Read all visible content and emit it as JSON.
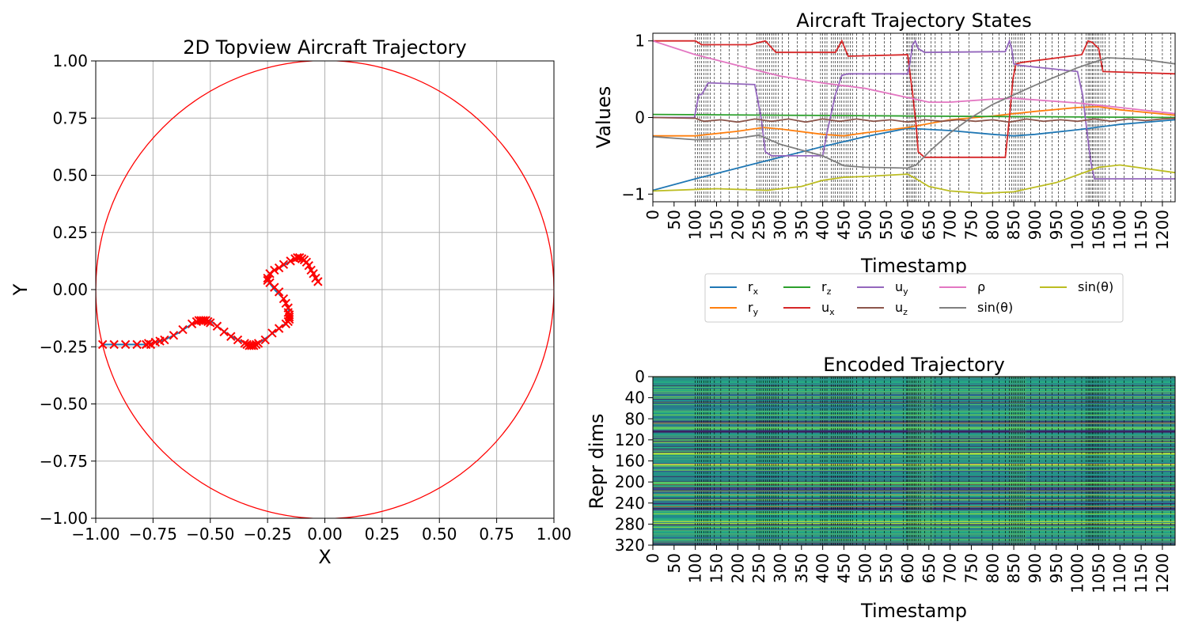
{
  "chart_data": [
    {
      "type": "scatter",
      "title": "2D Topview Aircraft Trajectory",
      "xlabel": "X",
      "ylabel": "Y",
      "xlim": [
        -1.0,
        1.0
      ],
      "ylim": [
        -1.0,
        1.0
      ],
      "grid": true,
      "xticks": [
        "−1.00",
        "−0.75",
        "−0.50",
        "−0.25",
        "0.00",
        "0.25",
        "0.50",
        "0.75",
        "1.00"
      ],
      "yticks": [
        "−1.00",
        "−0.75",
        "−0.50",
        "−0.25",
        "0.00",
        "0.25",
        "0.50",
        "0.75",
        "1.00"
      ],
      "colors": {
        "path": "#1f77b4",
        "markers": "#ff0000",
        "boundary": "#ff0000",
        "grid": "#b0b0b0"
      },
      "boundary_circle": {
        "center": [
          0,
          0
        ],
        "radius": 1.0
      },
      "path": [
        [
          -0.97,
          -0.24
        ],
        [
          -0.88,
          -0.24
        ],
        [
          -0.78,
          -0.24
        ],
        [
          -0.74,
          -0.23
        ],
        [
          -0.7,
          -0.22
        ],
        [
          -0.64,
          -0.19
        ],
        [
          -0.58,
          -0.15
        ],
        [
          -0.54,
          -0.135
        ],
        [
          -0.5,
          -0.135
        ],
        [
          -0.47,
          -0.16
        ],
        [
          -0.43,
          -0.19
        ],
        [
          -0.38,
          -0.22
        ],
        [
          -0.33,
          -0.24
        ],
        [
          -0.29,
          -0.235
        ],
        [
          -0.24,
          -0.2
        ],
        [
          -0.2,
          -0.17
        ],
        [
          -0.16,
          -0.14
        ],
        [
          -0.155,
          -0.11
        ],
        [
          -0.16,
          -0.08
        ],
        [
          -0.18,
          -0.04
        ],
        [
          -0.22,
          0.0
        ],
        [
          -0.25,
          0.04
        ],
        [
          -0.23,
          0.08
        ],
        [
          -0.19,
          0.1
        ],
        [
          -0.14,
          0.13
        ],
        [
          -0.1,
          0.135
        ],
        [
          -0.07,
          0.11
        ],
        [
          -0.05,
          0.07
        ],
        [
          -0.03,
          0.04
        ]
      ],
      "markers": [
        [
          -0.97,
          -0.24
        ],
        [
          -0.92,
          -0.24
        ],
        [
          -0.87,
          -0.24
        ],
        [
          -0.82,
          -0.24
        ],
        [
          -0.78,
          -0.24
        ],
        [
          -0.77,
          -0.235
        ],
        [
          -0.76,
          -0.24
        ],
        [
          -0.74,
          -0.23
        ],
        [
          -0.72,
          -0.225
        ],
        [
          -0.7,
          -0.22
        ],
        [
          -0.66,
          -0.2
        ],
        [
          -0.62,
          -0.175
        ],
        [
          -0.58,
          -0.15
        ],
        [
          -0.56,
          -0.14
        ],
        [
          -0.55,
          -0.135
        ],
        [
          -0.54,
          -0.135
        ],
        [
          -0.53,
          -0.135
        ],
        [
          -0.52,
          -0.135
        ],
        [
          -0.51,
          -0.14
        ],
        [
          -0.5,
          -0.145
        ],
        [
          -0.47,
          -0.16
        ],
        [
          -0.44,
          -0.185
        ],
        [
          -0.41,
          -0.205
        ],
        [
          -0.38,
          -0.22
        ],
        [
          -0.35,
          -0.235
        ],
        [
          -0.34,
          -0.24
        ],
        [
          -0.33,
          -0.245
        ],
        [
          -0.32,
          -0.245
        ],
        [
          -0.31,
          -0.245
        ],
        [
          -0.3,
          -0.24
        ],
        [
          -0.29,
          -0.235
        ],
        [
          -0.26,
          -0.22
        ],
        [
          -0.23,
          -0.19
        ],
        [
          -0.2,
          -0.17
        ],
        [
          -0.17,
          -0.15
        ],
        [
          -0.16,
          -0.14
        ],
        [
          -0.155,
          -0.13
        ],
        [
          -0.155,
          -0.12
        ],
        [
          -0.155,
          -0.11
        ],
        [
          -0.16,
          -0.1
        ],
        [
          -0.16,
          -0.08
        ],
        [
          -0.17,
          -0.06
        ],
        [
          -0.18,
          -0.04
        ],
        [
          -0.2,
          -0.01
        ],
        [
          -0.22,
          0.01
        ],
        [
          -0.24,
          0.03
        ],
        [
          -0.25,
          0.04
        ],
        [
          -0.25,
          0.05
        ],
        [
          -0.24,
          0.07
        ],
        [
          -0.22,
          0.085
        ],
        [
          -0.2,
          0.095
        ],
        [
          -0.18,
          0.11
        ],
        [
          -0.15,
          0.125
        ],
        [
          -0.13,
          0.135
        ],
        [
          -0.12,
          0.14
        ],
        [
          -0.11,
          0.14
        ],
        [
          -0.1,
          0.135
        ],
        [
          -0.09,
          0.13
        ],
        [
          -0.08,
          0.12
        ],
        [
          -0.07,
          0.105
        ],
        [
          -0.06,
          0.085
        ],
        [
          -0.05,
          0.07
        ],
        [
          -0.04,
          0.05
        ],
        [
          -0.03,
          0.035
        ]
      ]
    },
    {
      "type": "line",
      "title": "Aircraft Trajectory States",
      "xlabel": "Timestamp",
      "ylabel": "Values",
      "xlim": [
        0,
        1230
      ],
      "ylim": [
        -1.1,
        1.1
      ],
      "grid": false,
      "legend_position": "below",
      "yticks": [
        -1,
        0,
        1
      ],
      "ytick_labels": [
        "−1",
        "0",
        "1"
      ],
      "xticks": [
        0,
        50,
        100,
        150,
        200,
        250,
        300,
        350,
        400,
        450,
        500,
        550,
        600,
        650,
        700,
        750,
        800,
        850,
        900,
        950,
        1000,
        1050,
        1100,
        1150,
        1200
      ],
      "vlines": [
        100,
        105,
        110,
        115,
        120,
        125,
        130,
        135,
        145,
        160,
        180,
        200,
        220,
        245,
        250,
        255,
        260,
        265,
        270,
        275,
        280,
        285,
        290,
        295,
        305,
        320,
        340,
        360,
        375,
        395,
        400,
        405,
        410,
        420,
        425,
        430,
        435,
        440,
        445,
        450,
        455,
        460,
        465,
        470,
        480,
        495,
        510,
        525,
        545,
        560,
        590,
        598,
        600,
        604,
        608,
        612,
        616,
        620,
        625,
        630,
        640,
        655,
        665,
        680,
        700,
        720,
        745,
        775,
        800,
        815,
        830,
        840,
        845,
        850,
        855,
        860,
        865,
        870,
        875,
        890,
        910,
        925,
        940,
        955,
        970,
        995,
        1010,
        1020,
        1025,
        1028,
        1032,
        1035,
        1038,
        1042,
        1046,
        1050,
        1055,
        1060,
        1065,
        1075,
        1090,
        1110,
        1130,
        1160,
        1175,
        1200,
        1220
      ],
      "series": [
        {
          "name": "r_x",
          "color": "#1f77b4",
          "x": [
            0,
            100,
            200,
            300,
            400,
            500,
            600,
            700,
            800,
            850,
            900,
            1000,
            1100,
            1230
          ],
          "values": [
            -0.95,
            -0.8,
            -0.66,
            -0.52,
            -0.38,
            -0.25,
            -0.14,
            -0.17,
            -0.22,
            -0.24,
            -0.22,
            -0.16,
            -0.09,
            -0.03
          ]
        },
        {
          "name": "r_y",
          "color": "#ff7f0e",
          "x": [
            0,
            100,
            200,
            260,
            300,
            400,
            450,
            500,
            600,
            700,
            800,
            900,
            1000,
            1050,
            1100,
            1230
          ],
          "values": [
            -0.24,
            -0.24,
            -0.18,
            -0.13,
            -0.15,
            -0.22,
            -0.24,
            -0.2,
            -0.13,
            -0.03,
            0.02,
            0.08,
            0.13,
            0.14,
            0.1,
            0.03
          ]
        },
        {
          "name": "r_z",
          "color": "#2ca02c",
          "x": [
            0,
            300,
            600,
            900,
            1230
          ],
          "values": [
            0.04,
            0.03,
            0.02,
            0.01,
            0.0
          ]
        },
        {
          "name": "u_x",
          "color": "#d62728",
          "x": [
            0,
            100,
            115,
            130,
            230,
            250,
            265,
            290,
            430,
            445,
            460,
            600,
            612,
            620,
            625,
            640,
            830,
            840,
            848,
            855,
            870,
            1010,
            1025,
            1035,
            1050,
            1060,
            1230
          ],
          "values": [
            1.0,
            1.0,
            0.95,
            0.95,
            0.95,
            0.98,
            1.0,
            0.85,
            0.85,
            1.0,
            0.8,
            0.82,
            0.3,
            -0.1,
            -0.45,
            -0.52,
            -0.52,
            0.0,
            0.5,
            0.7,
            0.72,
            0.82,
            1.0,
            0.98,
            0.9,
            0.6,
            0.57
          ]
        },
        {
          "name": "u_y",
          "color": "#9467bd",
          "x": [
            0,
            98,
            108,
            115,
            130,
            140,
            240,
            255,
            265,
            280,
            300,
            400,
            410,
            430,
            445,
            460,
            600,
            605,
            612,
            618,
            625,
            640,
            830,
            840,
            845,
            850,
            865,
            1000,
            1012,
            1025,
            1032,
            1040,
            1055,
            1230
          ],
          "values": [
            0.0,
            0.0,
            0.3,
            0.3,
            0.45,
            0.45,
            0.43,
            0.0,
            -0.45,
            -0.5,
            -0.5,
            -0.5,
            -0.2,
            0.3,
            0.55,
            0.57,
            0.57,
            0.7,
            0.95,
            1.0,
            0.9,
            0.85,
            0.86,
            1.0,
            0.9,
            0.7,
            0.68,
            0.6,
            0.3,
            -0.3,
            -0.6,
            -0.8,
            -0.8,
            -0.8
          ]
        },
        {
          "name": "u_z",
          "color": "#8c564b",
          "x": [
            0,
            100,
            120,
            160,
            200,
            240,
            280,
            320,
            360,
            400,
            440,
            480,
            520,
            560,
            600,
            640,
            680,
            720,
            760,
            800,
            840,
            880,
            920,
            960,
            1000,
            1040,
            1080,
            1120,
            1160,
            1200,
            1230
          ],
          "values": [
            0.0,
            -0.01,
            -0.05,
            -0.03,
            -0.06,
            -0.02,
            -0.05,
            -0.02,
            -0.06,
            -0.02,
            -0.05,
            -0.02,
            -0.05,
            -0.03,
            -0.06,
            -0.03,
            -0.05,
            -0.03,
            -0.05,
            -0.03,
            -0.06,
            -0.02,
            -0.05,
            -0.03,
            -0.05,
            -0.02,
            -0.05,
            -0.02,
            -0.04,
            -0.02,
            -0.01
          ]
        },
        {
          "name": "ρ",
          "color": "#e377c2",
          "x": [
            0,
            100,
            200,
            300,
            400,
            500,
            600,
            650,
            700,
            800,
            850,
            900,
            1000,
            1100,
            1230
          ],
          "values": [
            1.0,
            0.82,
            0.68,
            0.54,
            0.45,
            0.38,
            0.26,
            0.2,
            0.2,
            0.24,
            0.25,
            0.23,
            0.19,
            0.13,
            0.05
          ]
        },
        {
          "name": "sin(θ)",
          "color": "#7f7f7f",
          "x": [
            0,
            100,
            200,
            250,
            300,
            400,
            450,
            500,
            600,
            620,
            650,
            700,
            750,
            800,
            900,
            1000,
            1070,
            1150,
            1230
          ],
          "values": [
            -0.25,
            -0.29,
            -0.27,
            -0.23,
            -0.35,
            -0.5,
            -0.63,
            -0.65,
            -0.66,
            -0.62,
            -0.45,
            -0.2,
            0.0,
            0.17,
            0.42,
            0.65,
            0.78,
            0.76,
            0.7
          ]
        },
        {
          "name": "sin(θ)",
          "color": "#bcbd22",
          "x": [
            0,
            150,
            270,
            350,
            400,
            450,
            500,
            600,
            620,
            650,
            700,
            780,
            850,
            950,
            1000,
            1050,
            1100,
            1230
          ],
          "values": [
            -0.96,
            -0.93,
            -0.95,
            -0.9,
            -0.82,
            -0.78,
            -0.77,
            -0.74,
            -0.8,
            -0.9,
            -0.96,
            -0.99,
            -0.97,
            -0.85,
            -0.75,
            -0.65,
            -0.62,
            -0.72
          ]
        }
      ],
      "legend": [
        {
          "label": "r",
          "sub": "x",
          "color": "#1f77b4"
        },
        {
          "label": "r",
          "sub": "y",
          "color": "#ff7f0e"
        },
        {
          "label": "r",
          "sub": "z",
          "color": "#2ca02c"
        },
        {
          "label": "u",
          "sub": "x",
          "color": "#d62728"
        },
        {
          "label": "u",
          "sub": "y",
          "color": "#9467bd"
        },
        {
          "label": "u",
          "sub": "z",
          "color": "#8c564b"
        },
        {
          "label": "ρ",
          "sub": "",
          "color": "#e377c2"
        },
        {
          "label": "sin(θ)",
          "sub": "",
          "color": "#7f7f7f"
        },
        {
          "label": "sin(θ)",
          "sub": "",
          "color": "#bcbd22"
        }
      ]
    },
    {
      "type": "heatmap",
      "title": "Encoded Trajectory",
      "xlabel": "Timestamp",
      "ylabel": "Repr dims",
      "xlim": [
        0,
        1230
      ],
      "ylim": [
        320,
        0
      ],
      "colormap": "viridis",
      "yticks": [
        0,
        40,
        80,
        120,
        160,
        200,
        240,
        280,
        320
      ],
      "xticks": [
        0,
        50,
        100,
        150,
        200,
        250,
        300,
        350,
        400,
        450,
        500,
        550,
        600,
        650,
        700,
        750,
        800,
        850,
        900,
        950,
        1000,
        1050,
        1100,
        1150,
        1200
      ],
      "dims": 320
    }
  ]
}
